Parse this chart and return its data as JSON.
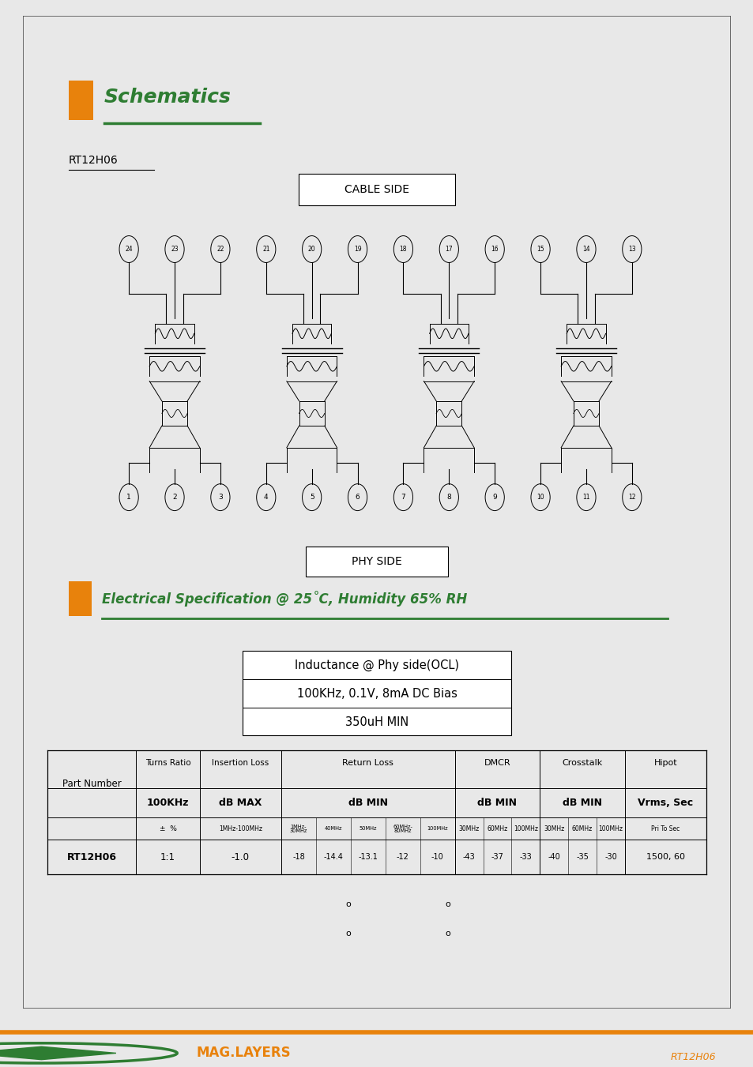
{
  "page_bg": "#ffffff",
  "outer_bg": "#e8e8e8",
  "border_color": "#555555",
  "orange_color": "#E8820C",
  "green_color": "#2E7D32",
  "title_schematics": "Schematics",
  "subtitle": "RT12H06",
  "cable_side_label": "CABLE SIDE",
  "phy_side_label": "PHY SIDE",
  "elec_spec_label": "Electrical Specification @ 25˚C, Humidity 65% RH",
  "inductance_box_lines": [
    "Inductance @ Phy side(OCL)",
    "100KHz, 0.1V, 8mA DC Bias",
    "350uH MIN"
  ],
  "footer_logo_text": "MAG.LAYERS",
  "footer_ref": "RT12H06",
  "footer_orange": "#E8820C",
  "footer_green": "#2E7D32"
}
